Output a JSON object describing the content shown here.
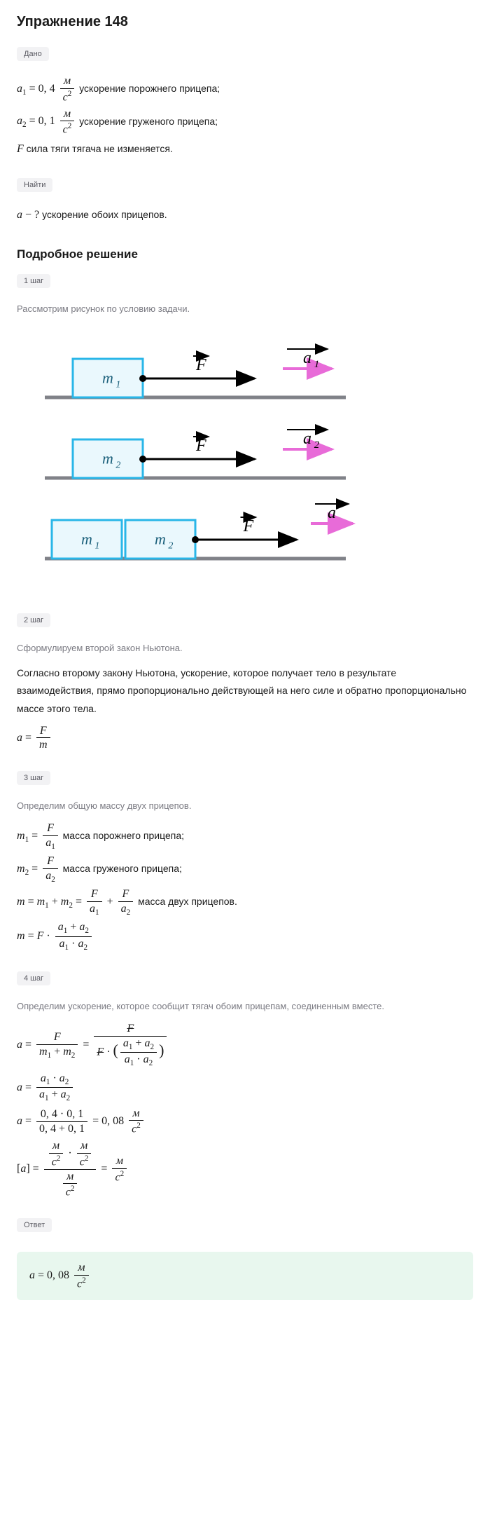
{
  "title": "Упражнение 148",
  "labels": {
    "given": "Дано",
    "find": "Найти",
    "detailed": "Подробное решение",
    "answer": "Ответ"
  },
  "given": {
    "a1_sym": "a",
    "a1_sub": "1",
    "a1_eq": " = 0, 4 ",
    "a1_unit_num": "м",
    "a1_unit_den": "c",
    "a1_unit_pow": "2",
    "a1_desc": " ускорение порожнего прицепа;",
    "a2_sym": "a",
    "a2_sub": "2",
    "a2_eq": " = 0, 1 ",
    "a2_unit_num": "м",
    "a2_unit_den": "c",
    "a2_unit_pow": "2",
    "a2_desc": " ускорение груженого прицепа;",
    "F_sym": "F",
    "F_desc": " сила тяги тягача не изменяется."
  },
  "find": {
    "a_sym": "a",
    "a_q": " − ? ",
    "a_desc": "ускорение обоих прицепов."
  },
  "steps": {
    "s1": {
      "pill": "1 шаг",
      "desc": "Рассмотрим рисунок по условию задачи."
    },
    "s2": {
      "pill": "2 шаг",
      "desc": "Сформулируем второй закон Ньютона.",
      "text": "Согласно второму закону Ньютона, ускорение, которое получает тело в результате взаимодействия, прямо пропорционально действующей на него силе и обратно пропорционально массе этого тела."
    },
    "s3": {
      "pill": "3 шаг",
      "desc": "Определим общую массу двух прицепов.",
      "m1_desc": " масса порожнего прицепа;",
      "m2_desc": " масса груженого прицепа;",
      "m_desc": " масса двух прицепов."
    },
    "s4": {
      "pill": "4 шаг",
      "desc": "Определим ускорение, которое сообщит тягач обоим прицепам, соединенным вместе.",
      "val": " = 0, 08 "
    }
  },
  "diagram": {
    "colors": {
      "box_stroke": "#29b6e8",
      "box_fill": "#eaf8fd",
      "ground": "#808288",
      "arrow_black": "#000000",
      "arrow_pink": "#e86bd8"
    },
    "labels": {
      "m1": "m",
      "m1_sub": "1",
      "m2": "m",
      "m2_sub": "2",
      "F": "F",
      "a": "a",
      "a1_sub": "1",
      "a2_sub": "2"
    },
    "stroke_width": 3
  },
  "answer": {
    "sym": "a",
    "eq": " = 0, 08 ",
    "unit_num": "м",
    "unit_den": "c",
    "unit_pow": "2"
  }
}
